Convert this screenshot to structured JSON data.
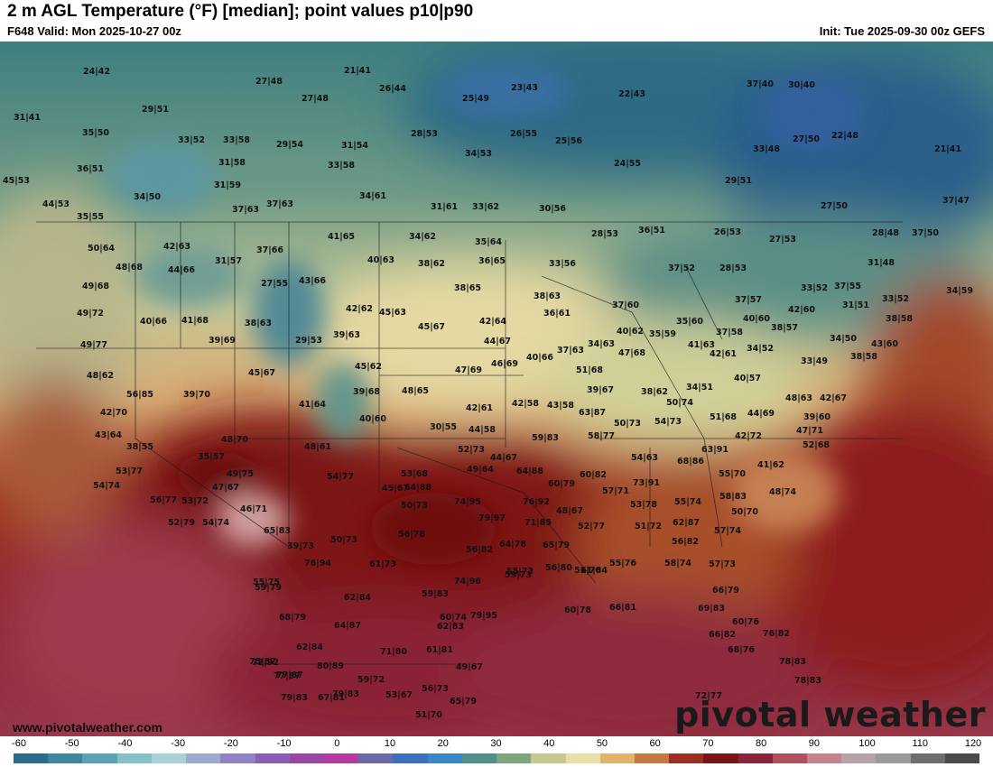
{
  "header": {
    "title": "2 m AGL Temperature (°F) [median]; point values p10|p90",
    "valid": "F648 Valid: Mon 2025-10-27 00z",
    "init": "Init: Tue 2025-09-30 00z GEFS"
  },
  "footer": {
    "website": "www.pivotalweather.com",
    "brand": "pivotal weather"
  },
  "colorbar": {
    "ticks": [
      "-60",
      "-50",
      "-40",
      "-30",
      "-20",
      "-10",
      "0",
      "10",
      "20",
      "30",
      "40",
      "50",
      "60",
      "70",
      "80",
      "90",
      "100",
      "110",
      "120"
    ],
    "colors": [
      "#2d6b8c",
      "#3c86a0",
      "#5aa3b4",
      "#86c0c8",
      "#a9d1d8",
      "#9ea9cf",
      "#8f82c2",
      "#8c5db5",
      "#9c45a8",
      "#b23aa0",
      "#6b6aa8",
      "#3d6fc0",
      "#3b86c8",
      "#4f8f88",
      "#7ea67e",
      "#c6c892",
      "#e9dea6",
      "#e3b36d",
      "#c77741",
      "#9c2f21",
      "#7a1313",
      "#8a2436",
      "#b0505d",
      "#c6838c",
      "#b8a2a7",
      "#9a9a9a",
      "#6e6e6e",
      "#4a4a4a"
    ]
  },
  "points": [
    {
      "text": "24|42"
    },
    {
      "text": "27|48"
    },
    {
      "text": "21|41"
    },
    {
      "text": "26|44"
    },
    {
      "text": "27|48"
    },
    {
      "text": "25|49"
    },
    {
      "text": "23|43"
    },
    {
      "text": "22|43"
    },
    {
      "text": "37|40"
    },
    {
      "text": "30|40"
    },
    {
      "text": "31|41"
    },
    {
      "text": "29|51"
    },
    {
      "text": "35|50"
    },
    {
      "text": "33|52"
    },
    {
      "text": "33|58"
    },
    {
      "text": "29|54"
    },
    {
      "text": "31|54"
    },
    {
      "text": "28|53"
    },
    {
      "text": "26|55"
    },
    {
      "text": "25|56"
    },
    {
      "text": "33|48"
    },
    {
      "text": "27|50"
    },
    {
      "text": "22|48"
    },
    {
      "text": "21|41"
    },
    {
      "text": "36|51"
    },
    {
      "text": "31|58"
    },
    {
      "text": "33|58"
    },
    {
      "text": "34|53"
    },
    {
      "text": "24|55"
    },
    {
      "text": "45|53"
    },
    {
      "text": "31|59"
    },
    {
      "text": "29|51"
    },
    {
      "text": "44|53"
    },
    {
      "text": "34|50"
    },
    {
      "text": "37|63"
    },
    {
      "text": "37|63"
    },
    {
      "text": "34|61"
    },
    {
      "text": "31|61"
    },
    {
      "text": "33|62"
    },
    {
      "text": "30|56"
    },
    {
      "text": "27|50"
    },
    {
      "text": "37|47"
    },
    {
      "text": "35|55"
    },
    {
      "text": "42|63"
    },
    {
      "text": "41|65"
    },
    {
      "text": "34|62"
    },
    {
      "text": "35|64"
    },
    {
      "text": "28|53"
    },
    {
      "text": "36|51"
    },
    {
      "text": "26|53"
    },
    {
      "text": "27|53"
    },
    {
      "text": "28|48"
    },
    {
      "text": "37|50"
    },
    {
      "text": "50|64"
    },
    {
      "text": "37|66"
    },
    {
      "text": "40|63"
    },
    {
      "text": "38|62"
    },
    {
      "text": "36|65"
    },
    {
      "text": "33|56"
    },
    {
      "text": "31|48"
    },
    {
      "text": "48|68"
    },
    {
      "text": "44|66"
    },
    {
      "text": "31|57"
    },
    {
      "text": "37|52"
    },
    {
      "text": "28|53"
    },
    {
      "text": "49|68"
    },
    {
      "text": "27|55"
    },
    {
      "text": "43|66"
    },
    {
      "text": "38|65"
    },
    {
      "text": "33|52"
    },
    {
      "text": "37|55"
    },
    {
      "text": "38|63"
    },
    {
      "text": "37|57"
    },
    {
      "text": "33|52"
    },
    {
      "text": "34|59"
    },
    {
      "text": "49|72"
    },
    {
      "text": "42|62"
    },
    {
      "text": "45|63"
    },
    {
      "text": "37|60"
    },
    {
      "text": "42|60"
    },
    {
      "text": "31|51"
    },
    {
      "text": "40|66"
    },
    {
      "text": "41|68"
    },
    {
      "text": "38|63"
    },
    {
      "text": "45|67"
    },
    {
      "text": "42|64"
    },
    {
      "text": "36|61"
    },
    {
      "text": "35|60"
    },
    {
      "text": "40|60"
    },
    {
      "text": "38|58"
    },
    {
      "text": "49|77"
    },
    {
      "text": "39|69"
    },
    {
      "text": "29|53"
    },
    {
      "text": "39|63"
    },
    {
      "text": "44|67"
    },
    {
      "text": "40|62"
    },
    {
      "text": "35|59"
    },
    {
      "text": "37|58"
    },
    {
      "text": "38|57"
    },
    {
      "text": "34|50"
    },
    {
      "text": "37|63"
    },
    {
      "text": "34|63"
    },
    {
      "text": "41|63"
    },
    {
      "text": "34|52"
    },
    {
      "text": "43|60"
    },
    {
      "text": "45|67"
    },
    {
      "text": "45|62"
    },
    {
      "text": "47|69"
    },
    {
      "text": "46|69"
    },
    {
      "text": "40|66"
    },
    {
      "text": "47|68"
    },
    {
      "text": "42|61"
    },
    {
      "text": "38|58"
    },
    {
      "text": "33|49"
    },
    {
      "text": "48|62"
    },
    {
      "text": "56|85"
    },
    {
      "text": "39|70"
    },
    {
      "text": "39|68"
    },
    {
      "text": "48|65"
    },
    {
      "text": "51|68"
    },
    {
      "text": "39|67"
    },
    {
      "text": "38|62"
    },
    {
      "text": "34|51"
    },
    {
      "text": "40|57"
    },
    {
      "text": "48|63"
    },
    {
      "text": "42|67"
    },
    {
      "text": "41|64"
    },
    {
      "text": "42|61"
    },
    {
      "text": "42|58"
    },
    {
      "text": "43|58"
    },
    {
      "text": "52|73"
    },
    {
      "text": "50|74"
    },
    {
      "text": "42|70"
    },
    {
      "text": "40|60"
    },
    {
      "text": "63|87"
    },
    {
      "text": "51|68"
    },
    {
      "text": "44|69"
    },
    {
      "text": "39|60"
    },
    {
      "text": "30|55"
    },
    {
      "text": "44|58"
    },
    {
      "text": "54|73"
    },
    {
      "text": "50|73"
    },
    {
      "text": "43|64"
    },
    {
      "text": "48|70"
    },
    {
      "text": "59|83"
    },
    {
      "text": "58|77"
    },
    {
      "text": "42|72"
    },
    {
      "text": "47|71"
    },
    {
      "text": "38|55"
    },
    {
      "text": "48|61"
    },
    {
      "text": "63|91"
    },
    {
      "text": "52|68"
    },
    {
      "text": "35|57"
    },
    {
      "text": "54|63"
    },
    {
      "text": "68|86"
    },
    {
      "text": "44|67"
    },
    {
      "text": "41|62"
    },
    {
      "text": "53|77"
    },
    {
      "text": "49|64"
    },
    {
      "text": "64|88"
    },
    {
      "text": "60|82"
    },
    {
      "text": "49|75"
    },
    {
      "text": "54|77"
    },
    {
      "text": "53|68"
    },
    {
      "text": "55|70"
    },
    {
      "text": "54|74"
    },
    {
      "text": "47|67"
    },
    {
      "text": "60|79"
    },
    {
      "text": "73|91"
    },
    {
      "text": "48|74"
    },
    {
      "text": "45|67"
    },
    {
      "text": "57|71"
    },
    {
      "text": "53|72"
    },
    {
      "text": "46|71"
    },
    {
      "text": "64|88"
    },
    {
      "text": "74|95"
    },
    {
      "text": "76|92"
    },
    {
      "text": "56|77"
    },
    {
      "text": "55|74"
    },
    {
      "text": "58|83"
    },
    {
      "text": "53|78"
    },
    {
      "text": "48|67"
    },
    {
      "text": "50|70"
    },
    {
      "text": "50|73"
    },
    {
      "text": "52|79"
    },
    {
      "text": "54|74"
    },
    {
      "text": "65|83"
    },
    {
      "text": "79|97"
    },
    {
      "text": "71|85"
    },
    {
      "text": "62|87"
    },
    {
      "text": "52|77"
    },
    {
      "text": "51|72"
    },
    {
      "text": "56|82"
    },
    {
      "text": "39|73"
    },
    {
      "text": "50|73"
    },
    {
      "text": "57|74"
    },
    {
      "text": "56|78"
    },
    {
      "text": "64|78"
    },
    {
      "text": "65|79"
    },
    {
      "text": "56|82"
    },
    {
      "text": "56|80"
    },
    {
      "text": "51|70"
    },
    {
      "text": "55|75"
    },
    {
      "text": "76|94"
    },
    {
      "text": "61|73"
    },
    {
      "text": "55|73"
    },
    {
      "text": "55|76"
    },
    {
      "text": "58|74"
    },
    {
      "text": "57|73"
    },
    {
      "text": "59|73"
    },
    {
      "text": "61|84"
    },
    {
      "text": "59|79"
    },
    {
      "text": "74|96"
    },
    {
      "text": "59|83"
    },
    {
      "text": "62|84"
    },
    {
      "text": "60|78"
    },
    {
      "text": "66|81"
    },
    {
      "text": "66|79"
    },
    {
      "text": "68|79"
    },
    {
      "text": "60|74"
    },
    {
      "text": "79|95"
    },
    {
      "text": "64|87"
    },
    {
      "text": "62|83"
    },
    {
      "text": "69|83"
    },
    {
      "text": "60|76"
    },
    {
      "text": "62|84"
    },
    {
      "text": "71|80"
    },
    {
      "text": "68|76"
    },
    {
      "text": "75|87"
    },
    {
      "text": "80|89"
    },
    {
      "text": "61|81"
    },
    {
      "text": "49|67"
    },
    {
      "text": "66|82"
    },
    {
      "text": "76|82"
    },
    {
      "text": "72|92"
    },
    {
      "text": "77|87"
    },
    {
      "text": "67|81"
    },
    {
      "text": "78|83"
    },
    {
      "text": "77|87"
    },
    {
      "text": "59|72"
    },
    {
      "text": "78|83"
    },
    {
      "text": "56|73"
    },
    {
      "text": "79|83"
    },
    {
      "text": "79|83"
    },
    {
      "text": "53|67"
    },
    {
      "text": "65|79"
    },
    {
      "text": "72|77"
    },
    {
      "text": "51|70"
    }
  ]
}
